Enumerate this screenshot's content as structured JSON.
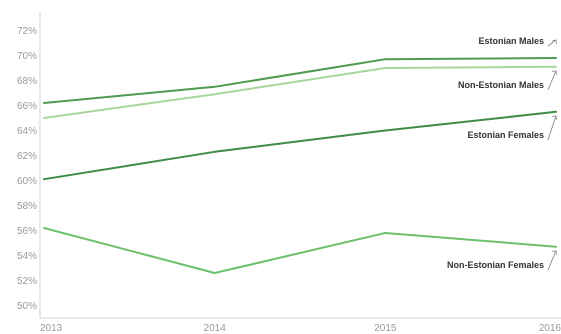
{
  "chart_data": {
    "type": "line",
    "x": [
      "2013",
      "2014",
      "2015",
      "2016"
    ],
    "ylim": [
      49,
      73
    ],
    "yticks": [
      "72%",
      "70%",
      "68%",
      "66%",
      "64%",
      "62%",
      "60%",
      "58%",
      "56%",
      "54%",
      "52%",
      "50%"
    ],
    "grid": false,
    "series": [
      {
        "name": "Estonian Males",
        "values": [
          66.2,
          67.5,
          69.7,
          69.8
        ],
        "color": "#4e9a4e"
      },
      {
        "name": "Non-Estonian Males",
        "values": [
          65.0,
          66.9,
          69.0,
          69.1
        ],
        "color": "#a8d59a"
      },
      {
        "name": "Estonian Females",
        "values": [
          60.1,
          62.3,
          64.0,
          65.5
        ],
        "color": "#3f8c44"
      },
      {
        "name": "Non-Estonian Females",
        "values": [
          56.2,
          52.6,
          55.8,
          54.7
        ],
        "color": "#6cc06c"
      }
    ]
  }
}
